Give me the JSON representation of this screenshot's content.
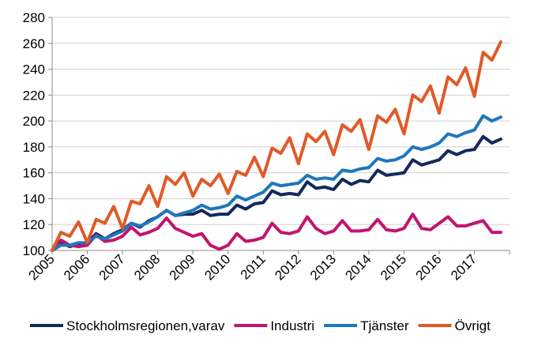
{
  "chart_data": {
    "type": "line",
    "title": "",
    "xlabel": "",
    "ylabel": "",
    "x_ticks": [
      "2005",
      "2006",
      "2007",
      "2008",
      "2009",
      "2010",
      "2011",
      "2012",
      "2013",
      "2014",
      "2015",
      "2016",
      "2017"
    ],
    "y_ticks": [
      "100",
      "120",
      "140",
      "160",
      "180",
      "200",
      "220",
      "240",
      "260",
      "280"
    ],
    "ylim": [
      100,
      280
    ],
    "x_range": [
      2005.0,
      2018.0
    ],
    "grid": "horizontal",
    "legend_position": "bottom",
    "quarters": [
      "2005 Q1",
      "2005 Q2",
      "2005 Q3",
      "2005 Q4",
      "2006 Q1",
      "2006 Q2",
      "2006 Q3",
      "2006 Q4",
      "2007 Q1",
      "2007 Q2",
      "2007 Q3",
      "2007 Q4",
      "2008 Q1",
      "2008 Q2",
      "2008 Q3",
      "2008 Q4",
      "2009 Q1",
      "2009 Q2",
      "2009 Q3",
      "2009 Q4",
      "2010 Q1",
      "2010 Q2",
      "2010 Q3",
      "2010 Q4",
      "2011 Q1",
      "2011 Q2",
      "2011 Q3",
      "2011 Q4",
      "2012 Q1",
      "2012 Q2",
      "2012 Q3",
      "2012 Q4",
      "2013 Q1",
      "2013 Q2",
      "2013 Q3",
      "2013 Q4",
      "2014 Q1",
      "2014 Q2",
      "2014 Q3",
      "2014 Q4",
      "2015 Q1",
      "2015 Q2",
      "2015 Q3",
      "2015 Q4",
      "2016 Q1",
      "2016 Q2",
      "2016 Q3",
      "2016 Q4",
      "2017 Q1",
      "2017 Q2",
      "2017 Q3",
      "2017 Q4"
    ],
    "series": [
      {
        "name": "Stockholmsregionen,varav",
        "color": "#14285a",
        "values": [
          100,
          106,
          103,
          105,
          106,
          113,
          109,
          113,
          116,
          121,
          118,
          123,
          126,
          131,
          127,
          128,
          128,
          131,
          127,
          128,
          128,
          135,
          132,
          136,
          137,
          146,
          143,
          144,
          143,
          153,
          148,
          149,
          147,
          155,
          151,
          154,
          153,
          162,
          158,
          159,
          160,
          170,
          166,
          168,
          170,
          177,
          174,
          177,
          178,
          188,
          183,
          186
        ]
      },
      {
        "name": "Industri",
        "color": "#c0156e",
        "values": [
          100,
          108,
          104,
          103,
          104,
          112,
          107,
          108,
          111,
          118,
          112,
          114,
          117,
          125,
          117,
          114,
          111,
          113,
          104,
          101,
          104,
          113,
          107,
          108,
          110,
          121,
          114,
          113,
          115,
          126,
          117,
          113,
          115,
          123,
          115,
          115,
          116,
          124,
          116,
          115,
          117,
          128,
          117,
          116,
          121,
          126,
          119,
          119,
          121,
          123,
          114,
          114
        ]
      },
      {
        "name": "Tjänster",
        "color": "#1f76bd",
        "values": [
          100,
          104,
          104,
          106,
          106,
          111,
          109,
          112,
          115,
          121,
          119,
          122,
          126,
          131,
          127,
          129,
          131,
          135,
          132,
          133,
          135,
          142,
          139,
          142,
          145,
          152,
          150,
          151,
          152,
          158,
          155,
          156,
          155,
          162,
          161,
          163,
          164,
          171,
          169,
          170,
          173,
          180,
          178,
          180,
          183,
          190,
          188,
          191,
          193,
          204,
          200,
          203
        ]
      },
      {
        "name": "Övrigt",
        "color": "#e05a28",
        "values": [
          100,
          114,
          111,
          122,
          106,
          124,
          121,
          134,
          117,
          138,
          136,
          150,
          134,
          157,
          151,
          160,
          142,
          155,
          150,
          159,
          144,
          161,
          158,
          172,
          157,
          179,
          175,
          187,
          167,
          190,
          184,
          192,
          174,
          197,
          192,
          201,
          178,
          204,
          199,
          209,
          190,
          220,
          215,
          227,
          206,
          234,
          228,
          241,
          219,
          253,
          247,
          261
        ]
      }
    ]
  }
}
